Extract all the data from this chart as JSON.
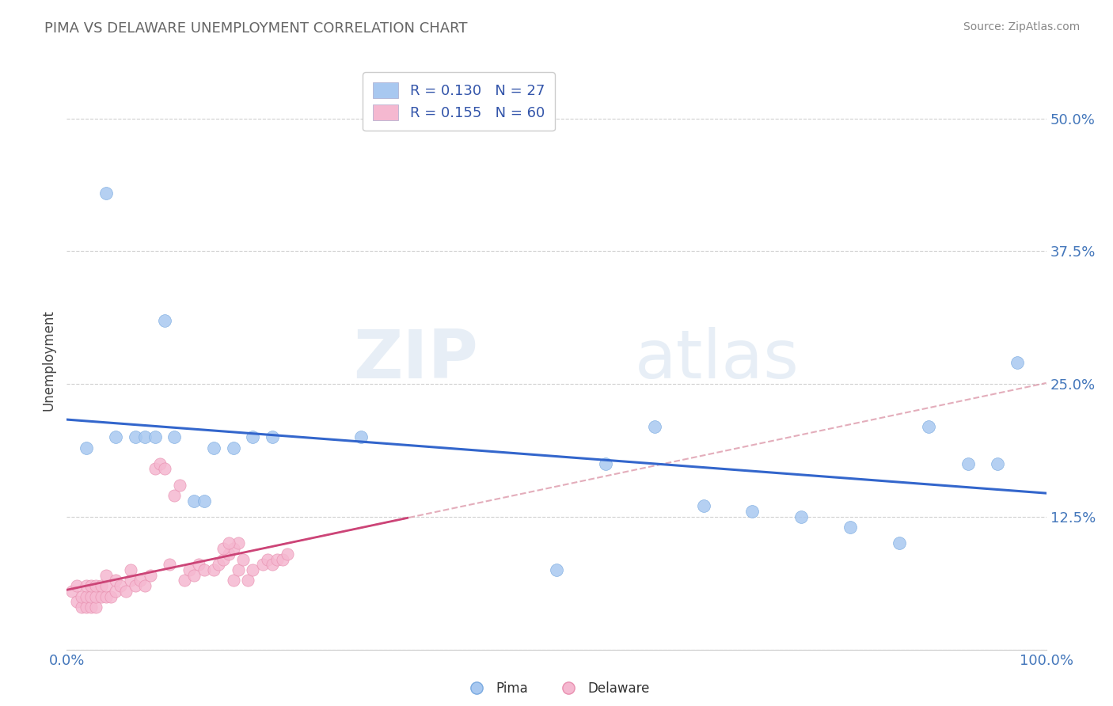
{
  "title": "PIMA VS DELAWARE UNEMPLOYMENT CORRELATION CHART",
  "source": "Source: ZipAtlas.com",
  "ylabel": "Unemployment",
  "xlabel": "",
  "xlim": [
    0.0,
    1.0
  ],
  "ylim": [
    0.0,
    0.545
  ],
  "yticks": [
    0.0,
    0.125,
    0.25,
    0.375,
    0.5
  ],
  "ytick_labels": [
    "",
    "12.5%",
    "25.0%",
    "37.5%",
    "50.0%"
  ],
  "xtick_labels": [
    "0.0%",
    "",
    "",
    "",
    "",
    "",
    "",
    "",
    "",
    "",
    "100.0%"
  ],
  "background_color": "#ffffff",
  "grid_color": "#d0d0d0",
  "watermark_zip": "ZIP",
  "watermark_atlas": "atlas",
  "pima_color": "#a8c8f0",
  "pima_edge_color": "#7aaae0",
  "delaware_color": "#f5b8d0",
  "delaware_edge_color": "#e890b0",
  "pima_line_color": "#3366cc",
  "delaware_solid_color": "#cc4477",
  "delaware_dash_color": "#dd99aa",
  "legend_R1": "R = 0.130",
  "legend_N1": "N = 27",
  "legend_R2": "R = 0.155",
  "legend_N2": "N = 60",
  "legend_color": "#3355aa",
  "pima_x": [
    0.02,
    0.04,
    0.05,
    0.07,
    0.08,
    0.09,
    0.1,
    0.11,
    0.13,
    0.14,
    0.15,
    0.17,
    0.19,
    0.21,
    0.3,
    0.5,
    0.55,
    0.6,
    0.65,
    0.7,
    0.75,
    0.8,
    0.85,
    0.88,
    0.92,
    0.95,
    0.97
  ],
  "pima_y": [
    0.19,
    0.43,
    0.2,
    0.2,
    0.2,
    0.2,
    0.31,
    0.2,
    0.14,
    0.14,
    0.19,
    0.19,
    0.2,
    0.2,
    0.2,
    0.075,
    0.175,
    0.21,
    0.135,
    0.13,
    0.125,
    0.115,
    0.1,
    0.21,
    0.175,
    0.175,
    0.27
  ],
  "delaware_x": [
    0.005,
    0.01,
    0.01,
    0.015,
    0.015,
    0.02,
    0.02,
    0.02,
    0.025,
    0.025,
    0.025,
    0.03,
    0.03,
    0.03,
    0.035,
    0.035,
    0.04,
    0.04,
    0.04,
    0.045,
    0.05,
    0.05,
    0.055,
    0.06,
    0.065,
    0.065,
    0.07,
    0.075,
    0.08,
    0.085,
    0.09,
    0.095,
    0.1,
    0.105,
    0.11,
    0.115,
    0.12,
    0.125,
    0.13,
    0.135,
    0.14,
    0.15,
    0.155,
    0.16,
    0.165,
    0.17,
    0.175,
    0.18,
    0.185,
    0.19,
    0.2,
    0.205,
    0.21,
    0.215,
    0.22,
    0.225,
    0.17,
    0.175,
    0.16,
    0.165
  ],
  "delaware_y": [
    0.055,
    0.045,
    0.06,
    0.04,
    0.05,
    0.04,
    0.05,
    0.06,
    0.04,
    0.05,
    0.06,
    0.04,
    0.05,
    0.06,
    0.05,
    0.06,
    0.05,
    0.06,
    0.07,
    0.05,
    0.055,
    0.065,
    0.06,
    0.055,
    0.065,
    0.075,
    0.06,
    0.065,
    0.06,
    0.07,
    0.17,
    0.175,
    0.17,
    0.08,
    0.145,
    0.155,
    0.065,
    0.075,
    0.07,
    0.08,
    0.075,
    0.075,
    0.08,
    0.085,
    0.09,
    0.065,
    0.075,
    0.085,
    0.065,
    0.075,
    0.08,
    0.085,
    0.08,
    0.085,
    0.085,
    0.09,
    0.095,
    0.1,
    0.095,
    0.1
  ]
}
